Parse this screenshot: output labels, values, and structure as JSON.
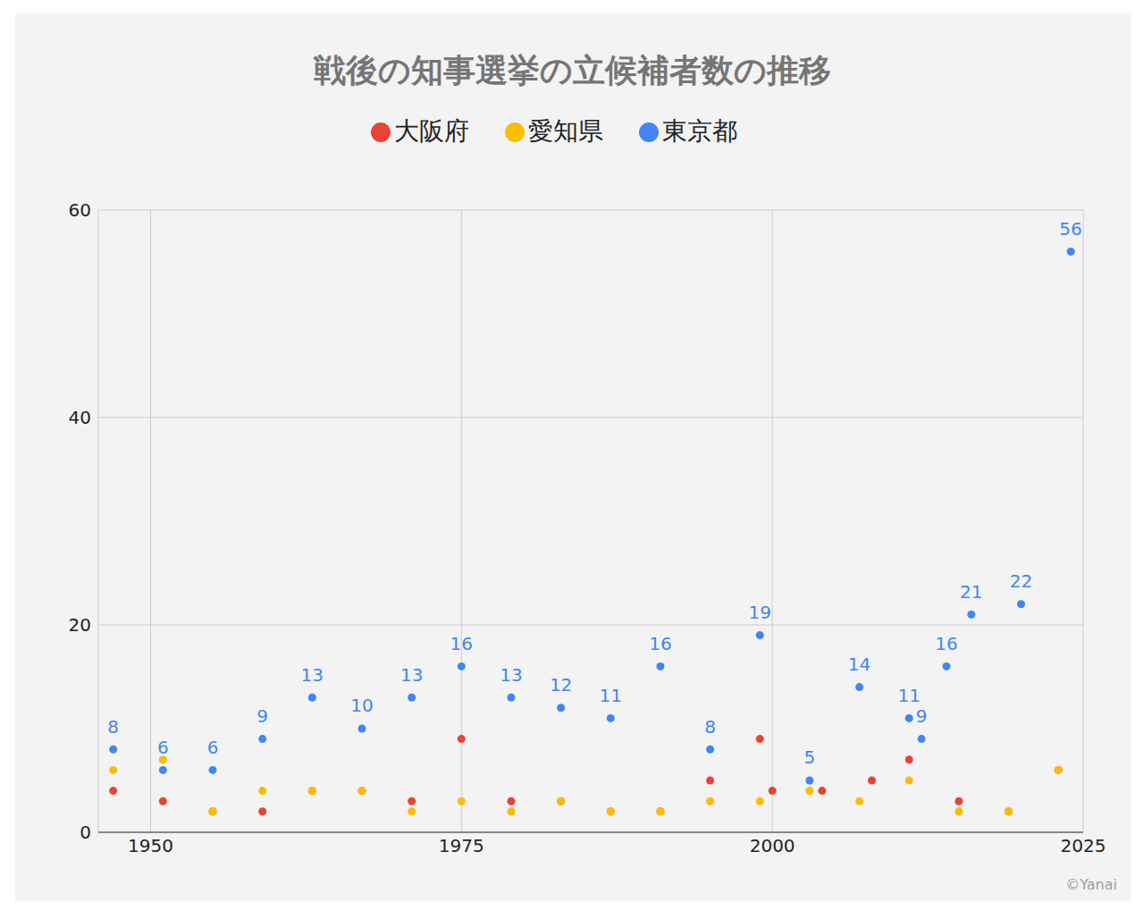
{
  "chart_data": {
    "type": "scatter",
    "title": "戦後の知事選挙の立候補者数の推移",
    "source": "©Yanai",
    "xlim": [
      1945.8,
      2025
    ],
    "xticks": [
      1950,
      1975,
      2000,
      2025
    ],
    "ylim": [
      0,
      60
    ],
    "yticks": [
      0,
      20,
      40,
      60
    ],
    "grid": true,
    "legend": "top",
    "marker": "circle",
    "series": [
      {
        "name": "東京都",
        "color": "#4285f4",
        "data_labels": true,
        "x": [
          1947,
          1951,
          1955,
          1959,
          1963,
          1967,
          1971,
          1975,
          1979,
          1983,
          1987,
          1991,
          1995,
          1999,
          2003,
          2007,
          2011,
          2012,
          2014,
          2016,
          2020,
          2024
        ],
        "values": [
          8,
          6,
          6,
          9,
          13,
          10,
          13,
          16,
          13,
          12,
          11,
          16,
          8,
          19,
          5,
          14,
          11,
          9,
          16,
          21,
          22,
          56
        ]
      },
      {
        "name": "大阪府",
        "color": "#ea4335",
        "data_labels": false,
        "x": [
          1947,
          1951,
          1955,
          1959,
          1963,
          1967,
          1971,
          1975,
          1979,
          1983,
          1987,
          1991,
          1995,
          1999,
          2000,
          2004,
          2008,
          2011,
          2015,
          2019,
          2023
        ],
        "values": [
          4,
          3,
          2,
          2,
          4,
          4,
          3,
          9,
          3,
          3,
          2,
          2,
          5,
          9,
          4,
          4,
          5,
          7,
          3,
          2,
          6
        ]
      },
      {
        "name": "愛知県",
        "color": "#fbbc04",
        "data_labels": false,
        "x": [
          1947,
          1951,
          1955,
          1959,
          1963,
          1967,
          1971,
          1975,
          1979,
          1983,
          1987,
          1991,
          1995,
          1999,
          2003,
          2007,
          2011,
          2015,
          2019,
          2023
        ],
        "values": [
          6,
          7,
          2,
          4,
          4,
          4,
          2,
          3,
          2,
          3,
          2,
          2,
          3,
          3,
          4,
          3,
          5,
          2,
          2,
          6
        ]
      }
    ]
  }
}
